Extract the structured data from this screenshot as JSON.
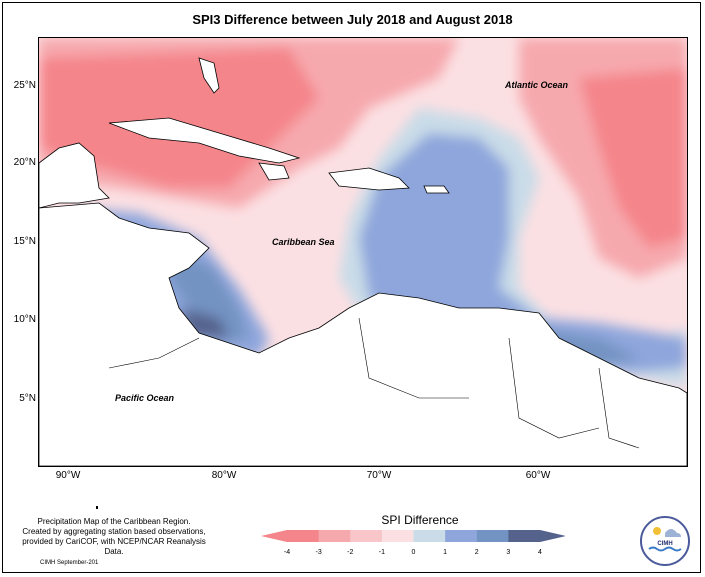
{
  "title": "SPI3 Difference between July 2018 and August 2018",
  "map": {
    "y_ticks": [
      "25°N",
      "20°N",
      "15°N",
      "10°N",
      "5°N"
    ],
    "x_ticks": [
      "90°W",
      "80°W",
      "70°W",
      "60°W"
    ],
    "labels": {
      "atlantic": "Atlantic Ocean",
      "caribbean": "Caribbean Sea",
      "pacific": "Pacific Ocean"
    }
  },
  "credit": {
    "line1": "Precipitation Map of the Caribbean Region.",
    "line2": "Created by aggregating station based observations,",
    "line3": "provided by CariCOF, with NCEP/NCAR Reanalysis Data.",
    "footer": "CIMH September-201"
  },
  "legend": {
    "title": "SPI Difference",
    "ticks": [
      "-4",
      "-3",
      "-2",
      "-1",
      "0",
      "1",
      "2",
      "3",
      "4"
    ],
    "colors": [
      "#f4858b",
      "#f6a9ad",
      "#f8c6c9",
      "#fbe0e3",
      "#c9dce8",
      "#8ea6dc",
      "#7393c2",
      "#55628c"
    ]
  },
  "logo": {
    "text": "CIMH"
  }
}
